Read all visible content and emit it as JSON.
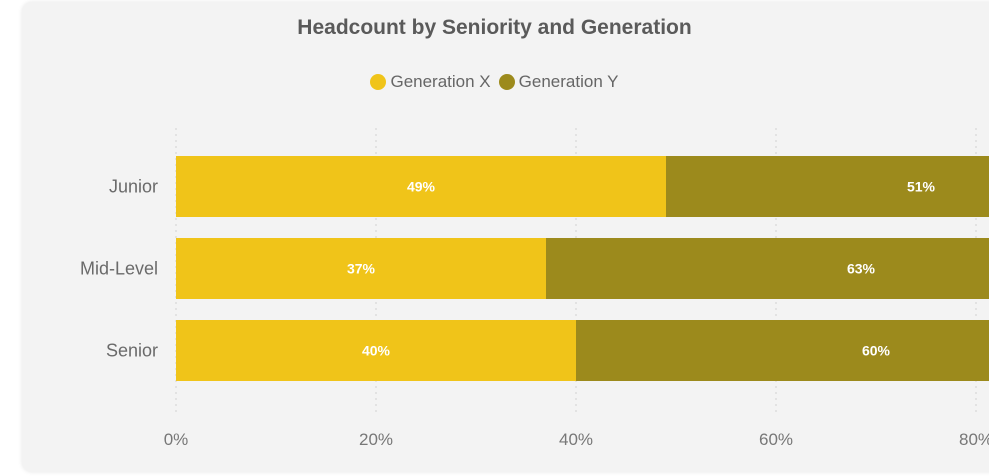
{
  "chart_data": {
    "type": "bar",
    "orientation": "horizontal",
    "stacked": true,
    "title": "Headcount by Seniority and Generation",
    "categories": [
      "Junior",
      "Mid-Level",
      "Senior"
    ],
    "series": [
      {
        "name": "Generation X",
        "values": [
          49,
          37,
          40
        ],
        "labels": [
          "49%",
          "37%",
          "40%"
        ],
        "color": "#f0c419"
      },
      {
        "name": "Generation Y",
        "values": [
          51,
          63,
          60
        ],
        "labels": [
          "51%",
          "63%",
          "60%"
        ],
        "color": "#9c8a1c"
      }
    ],
    "xlim": [
      0,
      100
    ],
    "x_ticks": [
      0,
      20,
      40,
      60,
      80
    ],
    "x_tick_labels": [
      "0%",
      "20%",
      "40%",
      "60%",
      "80%"
    ],
    "grid": true,
    "legend_position": "top-center"
  }
}
